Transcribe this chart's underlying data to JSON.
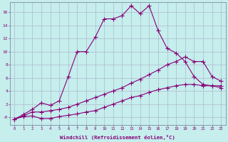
{
  "xlabel": "Windchill (Refroidissement éolien,°C)",
  "background_color": "#c5eeed",
  "grid_color": "#b0b8cc",
  "line_color": "#880077",
  "x_ticks": [
    0,
    1,
    2,
    3,
    4,
    5,
    6,
    7,
    8,
    9,
    10,
    11,
    12,
    13,
    14,
    15,
    16,
    17,
    18,
    19,
    20,
    21,
    22,
    23
  ],
  "y_ticks": [
    0,
    2,
    4,
    6,
    8,
    10,
    12,
    14,
    16
  ],
  "ylim": [
    -1.2,
    17.5
  ],
  "xlim": [
    -0.5,
    23.5
  ],
  "line1_x": [
    0,
    1,
    2,
    3,
    4,
    5,
    6,
    7,
    8,
    9,
    10,
    11,
    12,
    13,
    14,
    15,
    16,
    17,
    18,
    19,
    20,
    21,
    22,
    23
  ],
  "line1_y": [
    -0.3,
    0.4,
    1.2,
    2.2,
    1.8,
    2.5,
    6.2,
    10.0,
    10.0,
    12.2,
    15.0,
    15.0,
    15.5,
    17.0,
    15.8,
    17.0,
    13.2,
    10.5,
    9.8,
    8.5,
    6.2,
    5.0,
    4.8,
    4.5
  ],
  "line2_x": [
    0,
    1,
    2,
    3,
    4,
    5,
    6,
    7,
    8,
    9,
    10,
    11,
    12,
    13,
    14,
    15,
    16,
    17,
    18,
    19,
    20,
    21,
    22,
    23
  ],
  "line2_y": [
    -0.3,
    0.2,
    0.8,
    0.8,
    1.0,
    1.2,
    1.5,
    2.0,
    2.5,
    3.0,
    3.5,
    4.0,
    4.5,
    5.2,
    5.8,
    6.5,
    7.2,
    8.0,
    8.5,
    9.2,
    8.5,
    8.5,
    6.2,
    5.5
  ],
  "line3_x": [
    0,
    1,
    2,
    3,
    4,
    5,
    6,
    7,
    8,
    9,
    10,
    11,
    12,
    13,
    14,
    15,
    16,
    17,
    18,
    19,
    20,
    21,
    22,
    23
  ],
  "line3_y": [
    -0.3,
    0.1,
    0.2,
    -0.2,
    -0.2,
    0.1,
    0.3,
    0.5,
    0.8,
    1.0,
    1.5,
    2.0,
    2.5,
    3.0,
    3.3,
    3.8,
    4.2,
    4.5,
    4.8,
    5.0,
    5.0,
    4.8,
    4.8,
    4.8
  ]
}
